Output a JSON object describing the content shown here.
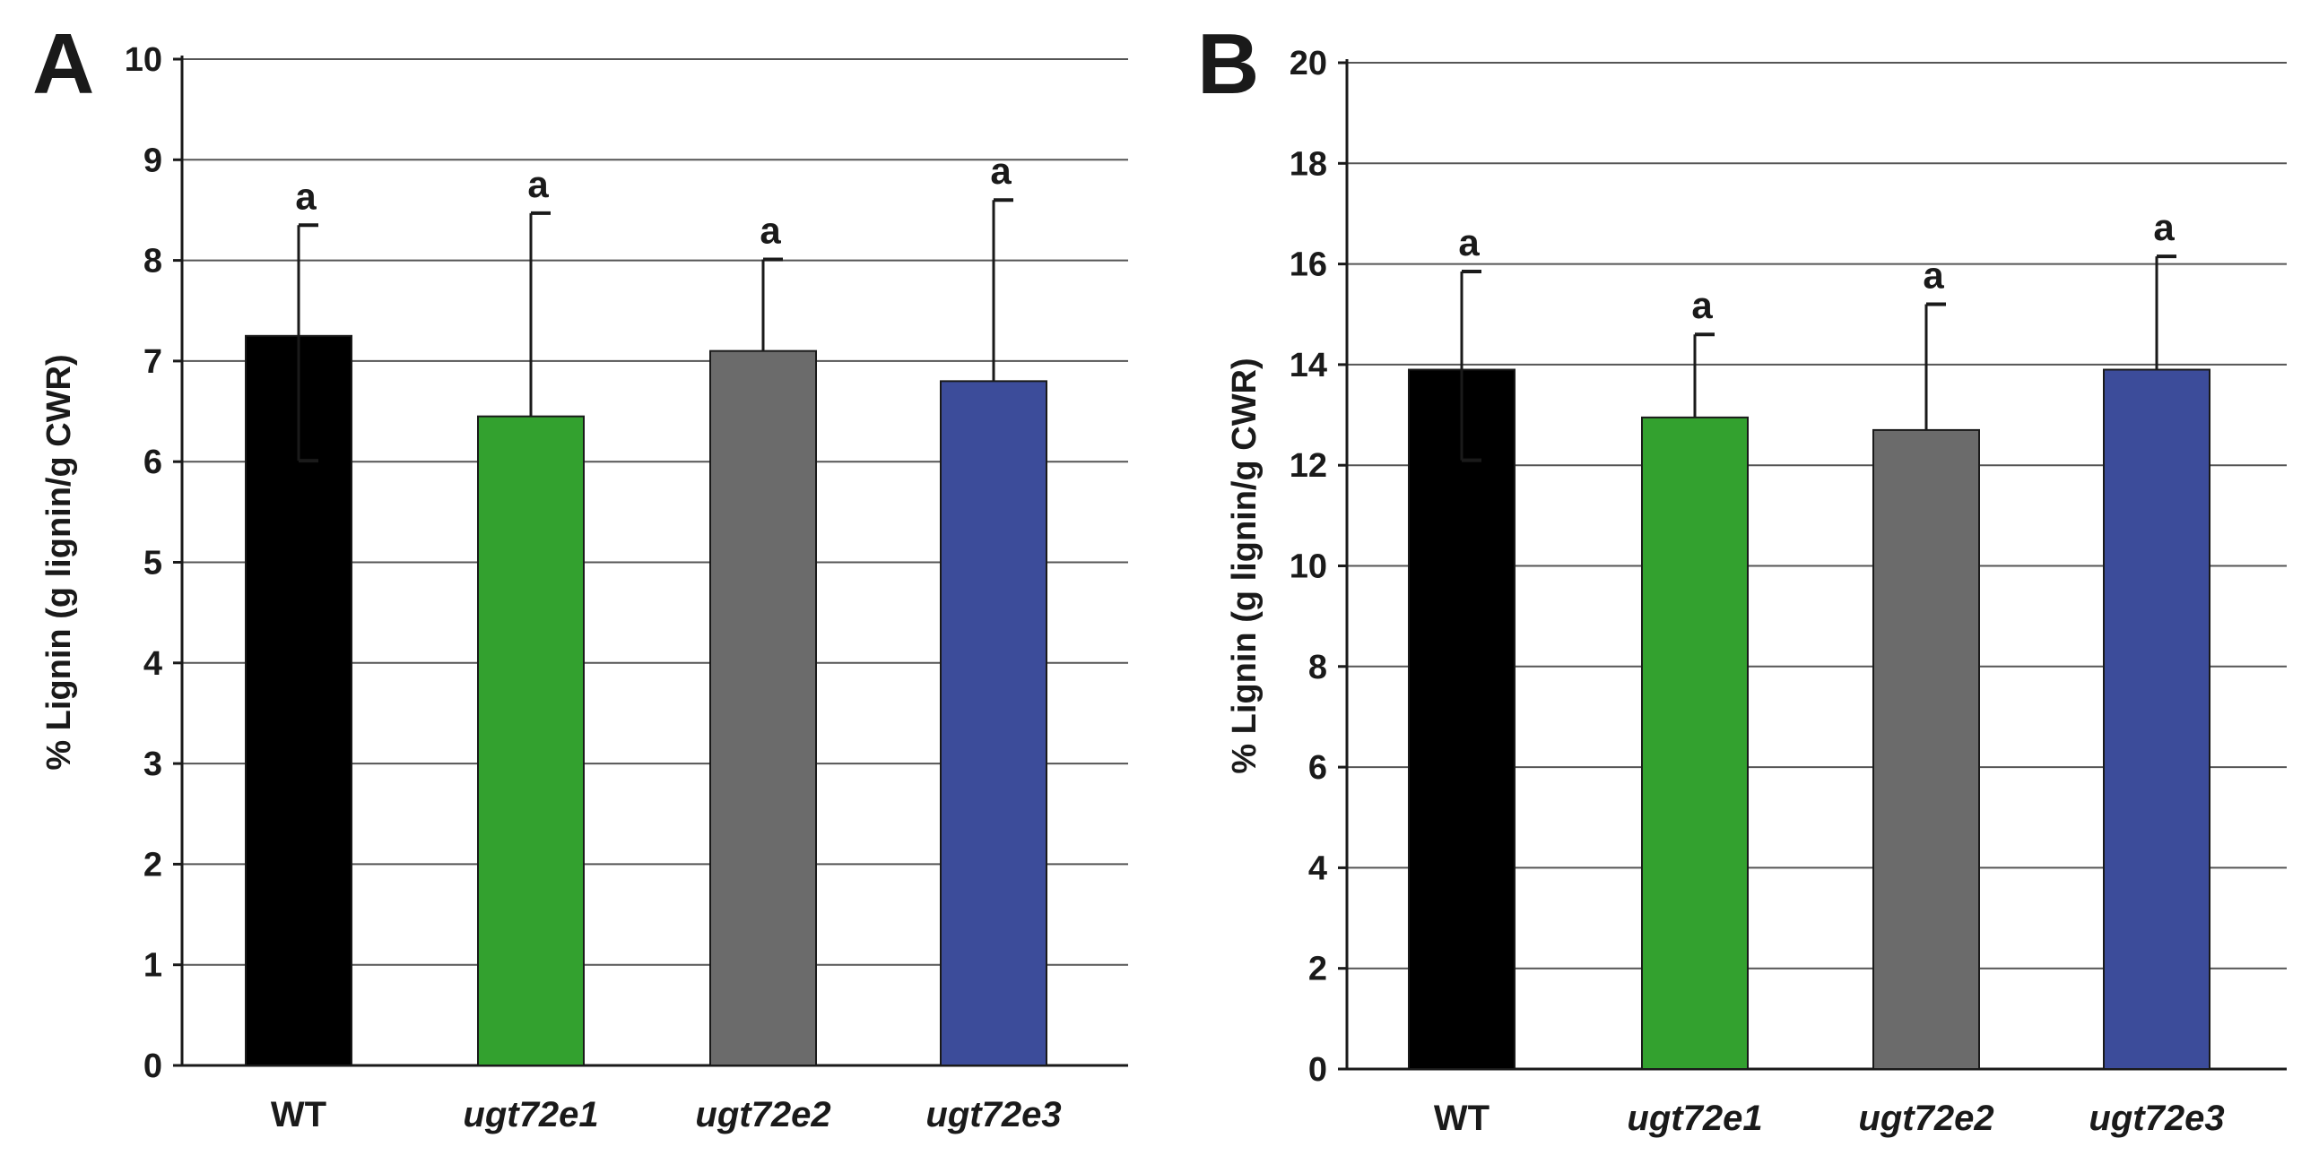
{
  "chart_data": [
    {
      "panel": "A",
      "type": "bar",
      "categories": [
        "WT",
        "ugt72e1",
        "ugt72e2",
        "ugt72e3"
      ],
      "italic_categories": [
        false,
        true,
        true,
        true
      ],
      "values": [
        7.25,
        6.45,
        7.1,
        6.8
      ],
      "error_upper": [
        8.35,
        8.47,
        8.01,
        8.6
      ],
      "error_lower": [
        6.01,
        null,
        null,
        null
      ],
      "significance": [
        "a",
        "a",
        "a",
        "a"
      ],
      "bar_colors": [
        "#000000",
        "#33a12f",
        "#6b6b6b",
        "#3c4c9a"
      ],
      "ylabel": "% Lignin (g lignin/g CWR)",
      "ylim": [
        0,
        10
      ],
      "yticks": [
        0,
        1,
        2,
        3,
        4,
        5,
        6,
        7,
        8,
        9,
        10
      ],
      "grid": true
    },
    {
      "panel": "B",
      "type": "bar",
      "categories": [
        "WT",
        "ugt72e1",
        "ugt72e2",
        "ugt72e3"
      ],
      "italic_categories": [
        false,
        true,
        true,
        true
      ],
      "values": [
        13.9,
        12.95,
        12.7,
        13.9
      ],
      "error_upper": [
        15.85,
        14.6,
        15.2,
        16.15
      ],
      "error_lower": [
        12.1,
        null,
        null,
        null
      ],
      "significance": [
        "a",
        "a",
        "a",
        "a"
      ],
      "bar_colors": [
        "#000000",
        "#33a12f",
        "#6b6b6b",
        "#3c4c9a"
      ],
      "ylabel": "% Lignin (g lignin/g CWR)",
      "ylim": [
        0,
        20
      ],
      "yticks": [
        0,
        2,
        4,
        6,
        8,
        10,
        12,
        14,
        16,
        18,
        20
      ],
      "grid": true
    }
  ]
}
